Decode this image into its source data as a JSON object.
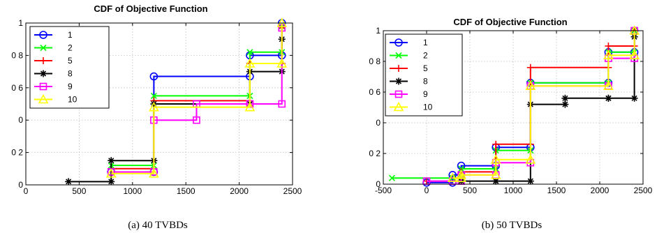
{
  "chart_data": [
    {
      "type": "line",
      "title": "CDF of Objective Function",
      "caption": "(a) 40 TVBDs",
      "xlim": [
        0,
        2500
      ],
      "ylim": [
        0,
        1
      ],
      "xticks": [
        0,
        500,
        1000,
        1500,
        2000,
        2500
      ],
      "yticks": [
        0,
        0.2,
        0.4,
        0.6,
        0.8,
        1
      ],
      "xtick_labels": [
        "0",
        "500",
        "1000",
        "1500",
        "2000",
        "2500"
      ],
      "ytick_labels": [
        "0",
        "0 2",
        "0",
        "0 6",
        "0 8",
        "1"
      ],
      "grid": true,
      "legend_position": "top-left",
      "series": [
        {
          "name": "1",
          "color": "#0000ff",
          "marker": "circle",
          "x": [
            800,
            1200,
            2100,
            2400
          ],
          "y": [
            0.08,
            0.67,
            0.8,
            1.0
          ]
        },
        {
          "name": "2",
          "color": "#00ff00",
          "marker": "x",
          "x": [
            800,
            1200,
            2100,
            2400
          ],
          "y": [
            0.12,
            0.55,
            0.82,
            0.98
          ]
        },
        {
          "name": "5",
          "color": "#ff0000",
          "marker": "plus",
          "x": [
            800,
            1200,
            2100,
            2400
          ],
          "y": [
            0.1,
            0.52,
            0.75,
            0.97
          ]
        },
        {
          "name": "8",
          "color": "#000000",
          "marker": "asterisk",
          "x": [
            400,
            800,
            1200,
            2100,
            2400
          ],
          "y": [
            0.02,
            0.15,
            0.5,
            0.7,
            0.9
          ]
        },
        {
          "name": "9",
          "color": "#ff00ff",
          "marker": "square",
          "x": [
            800,
            1200,
            1600,
            2100,
            2400
          ],
          "y": [
            0.08,
            0.4,
            0.5,
            0.5,
            0.97
          ]
        },
        {
          "name": "10",
          "color": "#ffff00",
          "marker": "triangle",
          "x": [
            800,
            1200,
            2100,
            2400
          ],
          "y": [
            0.07,
            0.48,
            0.75,
            1.0
          ]
        }
      ]
    },
    {
      "type": "line",
      "title": "CDF of Objective Function",
      "caption": "(b) 50 TVBDs",
      "xlim": [
        -500,
        2500
      ],
      "ylim": [
        0,
        1
      ],
      "xticks": [
        -500,
        0,
        500,
        1000,
        1500,
        2000,
        2500
      ],
      "yticks": [
        0,
        0.2,
        0.4,
        0.6,
        0.8,
        1
      ],
      "xtick_labels": [
        "-500",
        "0",
        "500",
        "1000",
        "1500",
        "2000",
        "2500"
      ],
      "ytick_labels": [
        "0",
        "0 2",
        "0",
        "0 6",
        "0 8",
        "1"
      ],
      "grid": true,
      "legend_position": "top-left",
      "series": [
        {
          "name": "1",
          "color": "#0000ff",
          "marker": "circle",
          "x": [
            0,
            300,
            400,
            800,
            1200,
            2100,
            2400
          ],
          "y": [
            0.01,
            0.06,
            0.12,
            0.24,
            0.66,
            0.86,
            1.0
          ]
        },
        {
          "name": "2",
          "color": "#00ff00",
          "marker": "x",
          "x": [
            -400,
            300,
            400,
            800,
            1200,
            2100,
            2400
          ],
          "y": [
            0.04,
            0.04,
            0.1,
            0.22,
            0.66,
            0.86,
            1.0
          ]
        },
        {
          "name": "5",
          "color": "#ff0000",
          "marker": "plus",
          "x": [
            0,
            400,
            800,
            1200,
            2100,
            2400
          ],
          "y": [
            0.02,
            0.08,
            0.26,
            0.76,
            0.9,
            1.0
          ]
        },
        {
          "name": "8",
          "color": "#000000",
          "marker": "asterisk",
          "x": [
            400,
            800,
            1200,
            1600,
            2100,
            2400
          ],
          "y": [
            0.02,
            0.02,
            0.52,
            0.56,
            0.56,
            0.96
          ]
        },
        {
          "name": "9",
          "color": "#ff00ff",
          "marker": "square",
          "x": [
            0,
            300,
            400,
            800,
            1200,
            2100,
            2400
          ],
          "y": [
            0.02,
            0.02,
            0.06,
            0.14,
            0.64,
            0.82,
            1.0
          ]
        },
        {
          "name": "10",
          "color": "#ffff00",
          "marker": "triangle",
          "x": [
            300,
            400,
            800,
            1200,
            2100,
            2400
          ],
          "y": [
            0.04,
            0.06,
            0.16,
            0.64,
            0.84,
            1.0
          ]
        }
      ]
    }
  ]
}
